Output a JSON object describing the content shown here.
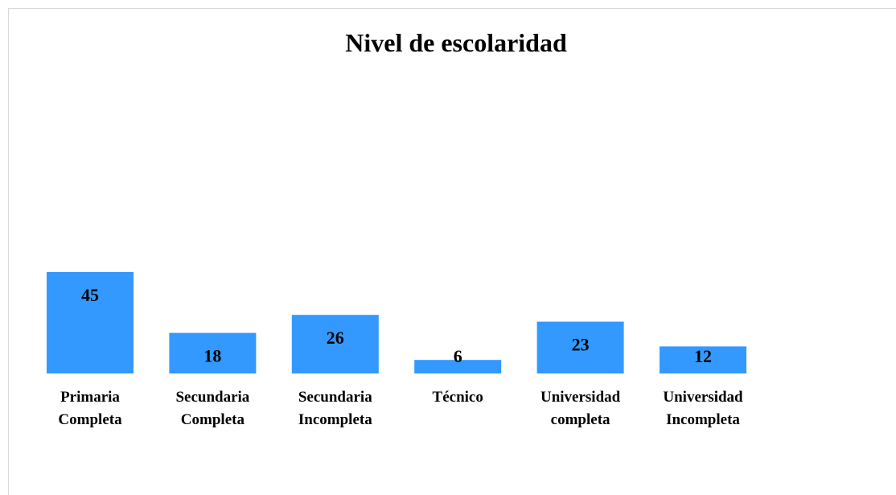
{
  "chart_data": {
    "type": "bar",
    "title": "Nivel de escolaridad",
    "categories": [
      "Primaria Completa",
      "Secundaria Completa",
      "Secundaria Incompleta",
      "Técnico",
      "Universidad completa",
      "Universidad Incompleta"
    ],
    "values": [
      45,
      18,
      26,
      6,
      23,
      12
    ],
    "color": "#3399ff"
  }
}
